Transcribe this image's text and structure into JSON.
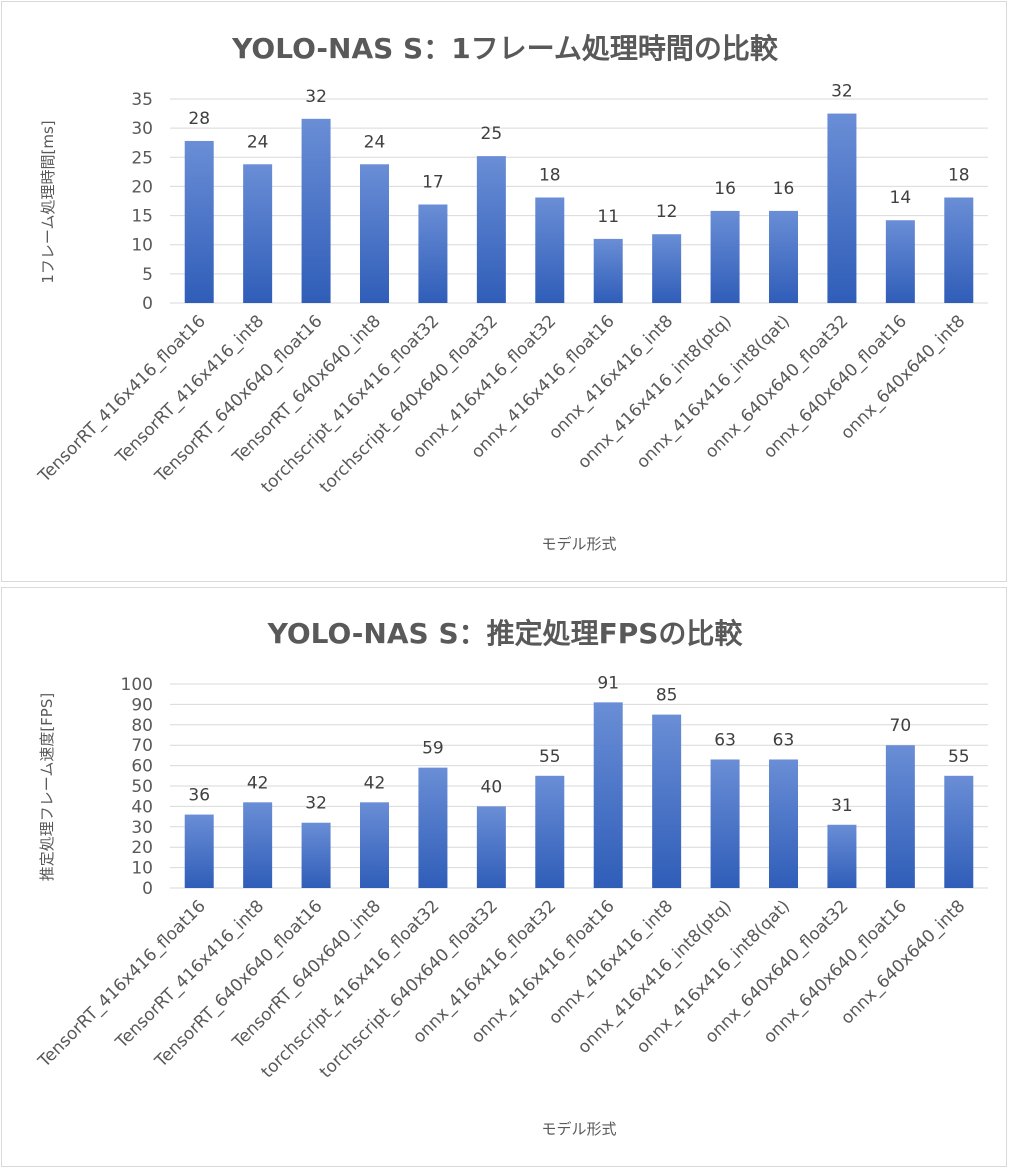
{
  "chart_data": [
    {
      "type": "bar",
      "title": "YOLO-NAS S：1フレーム処理時間の比較",
      "xlabel": "モデル形式",
      "ylabel": "1フレーム処理時間[ms]",
      "ylim": [
        0,
        35
      ],
      "yticks": [
        0,
        5,
        10,
        15,
        20,
        25,
        30,
        35
      ],
      "grid": true,
      "bar_color": "#4472c4",
      "categories": [
        "TensorRT_416x416_float16",
        "TensorRT_416x416_int8",
        "TensorRT_640x640_float16",
        "TensorRT_640x640_int8",
        "torchscript_416x416_float32",
        "torchscript_640x640_float32",
        "onnx_416x416_float32",
        "onnx_416x416_float16",
        "onnx_416x416_int8",
        "onnx_416x416_int8(ptq)",
        "onnx_416x416_int8(qat)",
        "onnx_640x640_float32",
        "onnx_640x640_float16",
        "onnx_640x640_int8"
      ],
      "values": [
        27.8,
        23.8,
        31.6,
        23.8,
        16.9,
        25.2,
        18.1,
        11.0,
        11.8,
        15.8,
        15.8,
        32.5,
        14.2,
        18.1
      ],
      "data_labels": [
        "28",
        "24",
        "32",
        "24",
        "17",
        "25",
        "18",
        "11",
        "12",
        "16",
        "16",
        "32",
        "14",
        "18"
      ]
    },
    {
      "type": "bar",
      "title": "YOLO-NAS S：推定処理FPSの比較",
      "xlabel": "モデル形式",
      "ylabel": "推定処理フレーム速度[FPS]",
      "ylim": [
        0,
        100
      ],
      "yticks": [
        0,
        10,
        20,
        30,
        40,
        50,
        60,
        70,
        80,
        90,
        100
      ],
      "grid": true,
      "bar_color": "#4472c4",
      "categories": [
        "TensorRT_416x416_float16",
        "TensorRT_416x416_int8",
        "TensorRT_640x640_float16",
        "TensorRT_640x640_int8",
        "torchscript_416x416_float32",
        "torchscript_640x640_float32",
        "onnx_416x416_float32",
        "onnx_416x416_float16",
        "onnx_416x416_int8",
        "onnx_416x416_int8(ptq)",
        "onnx_416x416_int8(qat)",
        "onnx_640x640_float32",
        "onnx_640x640_float16",
        "onnx_640x640_int8"
      ],
      "values": [
        36,
        42,
        32,
        42,
        59,
        40,
        55,
        91,
        85,
        63,
        63,
        31,
        70,
        55
      ],
      "data_labels": [
        "36",
        "42",
        "32",
        "42",
        "59",
        "40",
        "55",
        "91",
        "85",
        "63",
        "63",
        "31",
        "70",
        "55"
      ]
    }
  ]
}
